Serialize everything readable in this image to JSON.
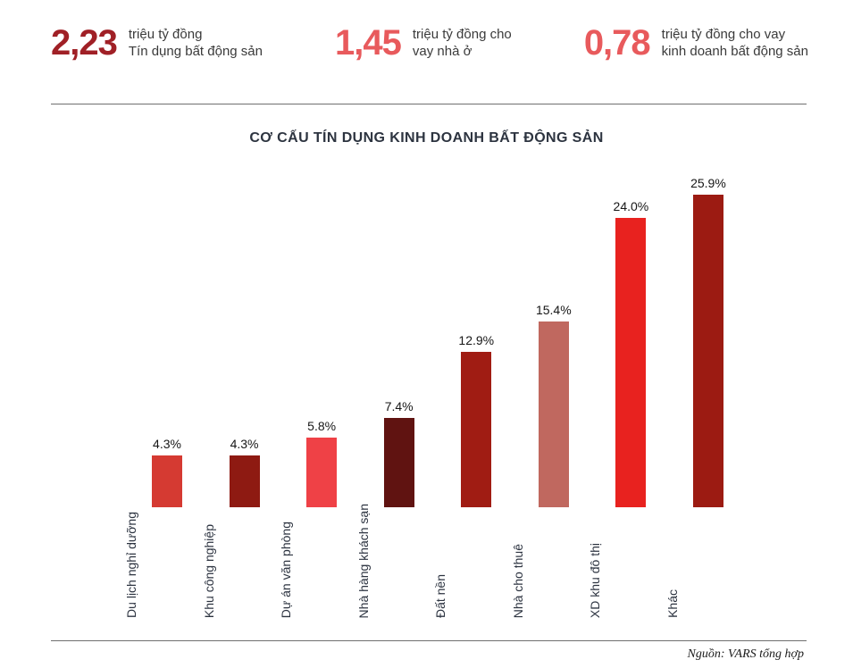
{
  "header": {
    "stats": [
      {
        "value": "2,23",
        "label_lines": [
          "triệu tỷ đồng",
          "Tín dụng bất động sản"
        ],
        "color": "#a02026"
      },
      {
        "value": "1,45",
        "label_lines": [
          "triệu tỷ đồng cho",
          "vay nhà ở"
        ],
        "color": "#e85a5c"
      },
      {
        "value": "0,78",
        "label_lines": [
          "triệu tỷ đồng cho vay",
          "kinh doanh bất động sản"
        ],
        "color": "#e85a5c"
      }
    ]
  },
  "chart_data": {
    "type": "bar",
    "title": "CƠ CẤU TÍN DỤNG KINH DOANH BẤT ĐỘNG SẢN",
    "categories": [
      "Du lịch nghỉ dưỡng",
      "Khu công nghiệp",
      "Dự án văn phòng",
      "Nhà hàng khách sạn",
      "Đất nền",
      "Nhà cho thuê",
      "XD khu đô thị",
      "Khác"
    ],
    "values": [
      4.3,
      4.3,
      5.8,
      7.4,
      12.9,
      15.4,
      24.0,
      25.9
    ],
    "value_labels": [
      "4.3%",
      "4.3%",
      "5.8%",
      "7.4%",
      "12.9%",
      "15.4%",
      "24.0%",
      "25.9%"
    ],
    "bar_colors": [
      "#d53a32",
      "#8e1a12",
      "#ef4146",
      "#601311",
      "#a01c13",
      "#c0685f",
      "#e8221f",
      "#9c1b12"
    ],
    "xlabel": "",
    "ylabel": "",
    "ylim": [
      0,
      27
    ],
    "grid": false,
    "legend": false
  },
  "footer": {
    "source": "Nguồn: VARS tổng hợp"
  }
}
